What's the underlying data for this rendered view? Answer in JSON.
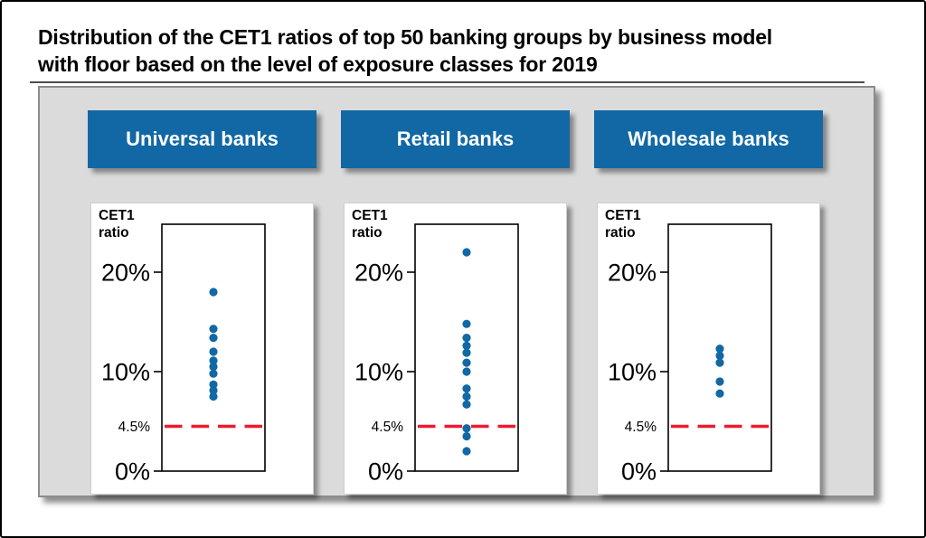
{
  "page": {
    "title_line1": "Distribution of the CET1 ratios of top 50 banking groups by business model",
    "title_line2": "with floor based on the level of exposure classes for 2019"
  },
  "colors": {
    "header_blue": "#1168a4",
    "dot_blue": "#1168a4",
    "floor_red": "#ec1c2e",
    "panel_gray": "#dbdbdb"
  },
  "chart_data": [
    {
      "type": "scatter",
      "title": "Universal banks",
      "ylabel_line1": "CET1",
      "ylabel_line2": "ratio",
      "unit": "%",
      "ylim": [
        0,
        25
      ],
      "grid": false,
      "yticks": [
        {
          "label": "20%",
          "value": 20,
          "major": true
        },
        {
          "label": "10%",
          "value": 10,
          "major": true
        },
        {
          "label": "4.5%",
          "value": 4.5,
          "major": false
        },
        {
          "label": "0%",
          "value": 0,
          "major": true
        }
      ],
      "floor": {
        "value": 4.5,
        "label": "4.5%",
        "style": "dashed-red"
      },
      "values": [
        18.0,
        14.3,
        13.4,
        12.0,
        11.1,
        10.5,
        9.8,
        8.7,
        8.1,
        7.5
      ]
    },
    {
      "type": "scatter",
      "title": "Retail banks",
      "ylabel_line1": "CET1",
      "ylabel_line2": "ratio",
      "unit": "%",
      "ylim": [
        0,
        25
      ],
      "grid": false,
      "yticks": [
        {
          "label": "20%",
          "value": 20,
          "major": true
        },
        {
          "label": "10%",
          "value": 10,
          "major": true
        },
        {
          "label": "4.5%",
          "value": 4.5,
          "major": false
        },
        {
          "label": "0%",
          "value": 0,
          "major": true
        }
      ],
      "floor": {
        "value": 4.5,
        "label": "4.5%",
        "style": "dashed-red"
      },
      "values": [
        22.0,
        14.8,
        13.4,
        12.6,
        11.9,
        10.9,
        10.0,
        8.3,
        7.5,
        6.7,
        4.3,
        3.5,
        2.0
      ]
    },
    {
      "type": "scatter",
      "title": "Wholesale banks",
      "ylabel_line1": "CET1",
      "ylabel_line2": "ratio",
      "unit": "%",
      "ylim": [
        0,
        25
      ],
      "grid": false,
      "yticks": [
        {
          "label": "20%",
          "value": 20,
          "major": true
        },
        {
          "label": "10%",
          "value": 10,
          "major": true
        },
        {
          "label": "4.5%",
          "value": 4.5,
          "major": false
        },
        {
          "label": "0%",
          "value": 0,
          "major": true
        }
      ],
      "floor": {
        "value": 4.5,
        "label": "4.5%",
        "style": "dashed-red"
      },
      "values": [
        12.3,
        11.6,
        10.9,
        9.0,
        7.8
      ]
    }
  ]
}
